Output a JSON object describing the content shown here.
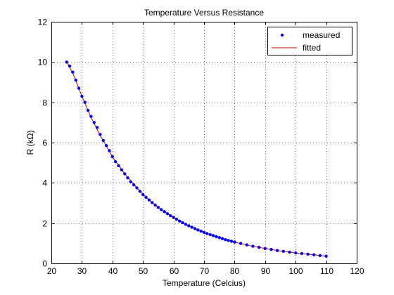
{
  "chart_data": {
    "type": "scatter",
    "title": "Temperature Versus Resistance",
    "xlabel": "Temperature (Celcius)",
    "ylabel": "R (kΩ)",
    "xlim": [
      20,
      120
    ],
    "ylim": [
      0,
      12
    ],
    "xticks": [
      "20",
      "30",
      "40",
      "50",
      "60",
      "70",
      "80",
      "90",
      "100",
      "110",
      "120"
    ],
    "yticks": [
      "0",
      "2",
      "4",
      "6",
      "8",
      "10",
      "12"
    ],
    "grid": true,
    "grid_style": "dotted",
    "legend_position": "top-right",
    "series": [
      {
        "name": "measured",
        "mode": "markers",
        "color": "#0000ff",
        "marker": "dot",
        "x": [
          25,
          26,
          27,
          28,
          29,
          30,
          31,
          32,
          33,
          34,
          35,
          36,
          37,
          38,
          39,
          40,
          41,
          42,
          43,
          44,
          45,
          46,
          47,
          48,
          49,
          50,
          51,
          52,
          53,
          54,
          55,
          56,
          57,
          58,
          59,
          60,
          61,
          62,
          63,
          64,
          65,
          66,
          67,
          68,
          69,
          70,
          71,
          72,
          73,
          74,
          75,
          76,
          77,
          78,
          79,
          80,
          82,
          84,
          86,
          88,
          90,
          92,
          94,
          96,
          98,
          100,
          102,
          104,
          106,
          108,
          110
        ],
        "y": [
          10.0,
          9.8,
          9.5,
          9.1,
          8.7,
          8.3,
          8.0,
          7.6,
          7.3,
          7.0,
          6.75,
          6.4,
          6.1,
          5.85,
          5.6,
          5.3,
          5.05,
          4.85,
          4.65,
          4.45,
          4.25,
          4.05,
          3.9,
          3.75,
          3.58,
          3.42,
          3.28,
          3.15,
          3.02,
          2.9,
          2.78,
          2.67,
          2.57,
          2.47,
          2.37,
          2.28,
          2.19,
          2.1,
          2.02,
          1.94,
          1.87,
          1.8,
          1.73,
          1.66,
          1.6,
          1.54,
          1.48,
          1.43,
          1.38,
          1.33,
          1.28,
          1.23,
          1.18,
          1.14,
          1.1,
          1.06,
          0.99,
          0.92,
          0.85,
          0.8,
          0.74,
          0.69,
          0.64,
          0.6,
          0.56,
          0.52,
          0.49,
          0.46,
          0.43,
          0.39,
          0.36
        ]
      },
      {
        "name": "fitted",
        "mode": "line",
        "color": "#cc0000",
        "x": [
          25,
          27,
          30,
          33,
          36,
          40,
          44,
          48,
          52,
          56,
          60,
          65,
          70,
          75,
          80,
          85,
          90,
          95,
          100,
          105,
          110
        ],
        "y": [
          10.0,
          9.45,
          8.3,
          7.25,
          6.35,
          5.3,
          4.45,
          3.75,
          3.15,
          2.67,
          2.28,
          1.87,
          1.54,
          1.28,
          1.06,
          0.88,
          0.74,
          0.62,
          0.52,
          0.44,
          0.36
        ]
      }
    ]
  }
}
